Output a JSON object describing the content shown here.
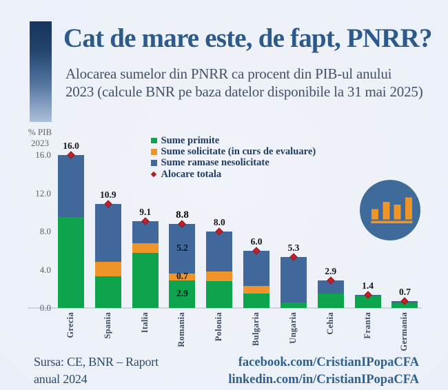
{
  "header": {
    "title": "Cat de mare este, de fapt, PNRR?",
    "subtitle_line1": "Alocarea sumelor din PNRR ca procent din PIB-ul anului",
    "subtitle_line2": "2023 (calcule BNR pe baza datelor disponibile la 31 mai 2025)"
  },
  "axis": {
    "unit_line1": "% PIB",
    "unit_line2": "2023"
  },
  "chart_data": {
    "type": "bar",
    "stacked": true,
    "title": "Cat de mare este, de fapt, PNRR?",
    "subtitle": "Alocarea sumelor din PNRR ca procent din PIB-ul anului 2023 (calcule BNR pe baza datelor disponibile la 31 mai 2025)",
    "ylabel": "% PIB 2023",
    "xlabel": "",
    "ylim": [
      0,
      16
    ],
    "yticks": [
      {
        "value": 16,
        "label": "16.0"
      },
      {
        "value": 12,
        "label": "12.0"
      },
      {
        "value": 8,
        "label": "8.0"
      },
      {
        "value": 4,
        "label": "4.0"
      },
      {
        "value": 0,
        "label": "0.0"
      }
    ],
    "grid": false,
    "legend_position": "top-center",
    "categories": [
      "Grecia",
      "Spania",
      "Italia",
      "Romania",
      "Polonia",
      "Bulgaria",
      "Ungaria",
      "Cehia",
      "Franta",
      "Germania"
    ],
    "series": [
      {
        "name": "Sume primite",
        "color": "#0ea44e",
        "values": [
          9.5,
          3.3,
          5.8,
          2.9,
          2.8,
          1.5,
          0.6,
          1.5,
          1.2,
          0.5
        ]
      },
      {
        "name": "Sume solicitate (in curs de evaluare)",
        "color": "#ef9429",
        "values": [
          0,
          1.5,
          1.0,
          0.7,
          1.0,
          0.8,
          0,
          0,
          0,
          0
        ]
      },
      {
        "name": "Sume ramase nesolicitate",
        "color": "#40689a",
        "values": [
          6.5,
          6.1,
          2.3,
          5.2,
          4.2,
          3.7,
          4.7,
          1.4,
          0.2,
          0.2
        ]
      }
    ],
    "totals": {
      "name": "Alocare totala",
      "marker": "diamond",
      "color": "#c2202a",
      "values": [
        16.0,
        10.9,
        9.1,
        8.8,
        8.0,
        6.0,
        5.3,
        2.9,
        1.4,
        0.7
      ],
      "labels": [
        "16.0",
        "10.9",
        "9.1",
        "8.8",
        "8.0",
        "6.0",
        "5.3",
        "2.9",
        "1.4",
        "0.7"
      ]
    },
    "highlight_category": "Romania",
    "segment_labels": {
      "category": "Romania",
      "values": [
        "2.9",
        "0.7",
        "5.2"
      ]
    }
  },
  "legend": {
    "items": [
      {
        "label": "Sume primite",
        "swatch": "square",
        "color": "#0ea44e"
      },
      {
        "label": "Sume solicitate (in curs de evaluare)",
        "swatch": "square",
        "color": "#ef9429"
      },
      {
        "label": "Sume ramase nesolicitate",
        "swatch": "square",
        "color": "#40689a"
      },
      {
        "label": "Alocare totala",
        "swatch": "diamond",
        "color": "#b01e24"
      }
    ]
  },
  "footer": {
    "source_line1": "Sursa: CE, BNR – Raport",
    "source_line2": "anual 2024",
    "facebook": "facebook.com/CristianIPopaCFA",
    "linkedin": "linkedin.com/in/CristianIPopaCFA"
  },
  "icons": {
    "chart_icon": "bar-chart-circle-icon",
    "chart_icon_circle_color": "#3f6b9a",
    "chart_icon_bar_color": "#ee9528"
  },
  "colors": {
    "background": "#edf1f8",
    "title": "#2d5a8c",
    "subtitle": "#42506a",
    "legend_text": "#1e3d66",
    "tick_text": "#57606c",
    "bar_green": "#0ea44e",
    "bar_orange": "#ef9429",
    "bar_blue": "#40689a",
    "diamond_red": "#c2202a",
    "footer_text": "#2c4a6e",
    "social_text": "#30608e"
  }
}
